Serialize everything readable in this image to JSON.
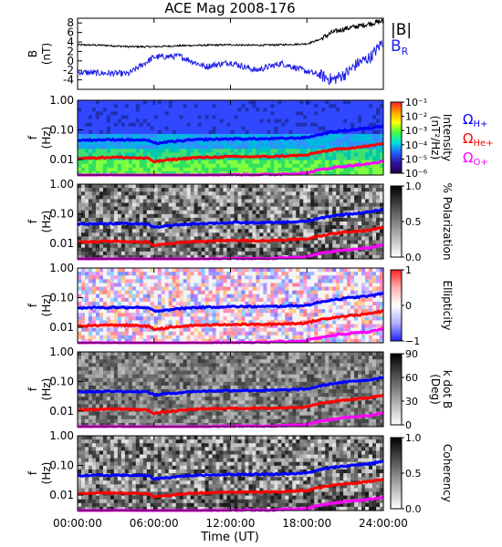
{
  "title": "ACE Mag 2008-176",
  "xlabel": "Time (UT)",
  "colors": {
    "B_total": "#000000",
    "B_R": "#1f1fe6",
    "H_plus": "#0000ff",
    "He_plus": "#ff0000",
    "O_plus": "#ff00ff"
  },
  "chart_data": [
    {
      "type": "line",
      "panel": "B",
      "ylabel": "B",
      "yunit": "(nT)",
      "ylim": [
        -6,
        9
      ],
      "yticks": [
        -4,
        -2,
        0,
        2,
        4,
        6,
        8
      ],
      "x": [
        0,
        2,
        4,
        6,
        8,
        10,
        12,
        14,
        16,
        18,
        19,
        20,
        21,
        22,
        23,
        24
      ],
      "xticks": [
        "00:00:00",
        "06:00:00",
        "12:00:00",
        "18:00:00",
        "24:00:00"
      ],
      "series": [
        {
          "name": "|B|",
          "color": "#000000",
          "values": [
            3.4,
            3.3,
            3.0,
            3.0,
            3.2,
            3.3,
            3.4,
            3.3,
            3.4,
            3.6,
            4.5,
            6.0,
            6.8,
            7.3,
            7.9,
            8.4
          ]
        },
        {
          "name": "B_R",
          "color": "#1f1fe6",
          "values": [
            -2.4,
            -2.6,
            -2.7,
            0.8,
            1.0,
            -1.2,
            -0.3,
            -2.0,
            -0.5,
            -2.2,
            -3.0,
            -4.0,
            -2.8,
            -0.5,
            0.8,
            4.2
          ]
        }
      ]
    },
    {
      "type": "heatmap",
      "panel": "intensity",
      "ylabel": "f",
      "yunit": "(Hz)",
      "ylim": [
        0.003,
        1.0
      ],
      "ytick_labels": [
        "1.00",
        "0.10",
        "0.01"
      ],
      "colorbar": {
        "label": "Intensity",
        "unit": "(nT²/Hz)",
        "ticks": [
          "10⁻¹",
          "10⁻²",
          "10⁻³",
          "10⁻⁴",
          "10⁻⁵",
          "10⁻⁶"
        ]
      }
    },
    {
      "type": "heatmap",
      "panel": "polarization",
      "ylabel": "f",
      "yunit": "(Hz)",
      "ylim": [
        0.003,
        1.0
      ],
      "ytick_labels": [
        "1.00",
        "0.10",
        "0.01"
      ],
      "colorbar": {
        "label": "% Polarization",
        "ticks": [
          "1.0",
          "0.5",
          "0.0"
        ]
      }
    },
    {
      "type": "heatmap",
      "panel": "ellipticity",
      "ylabel": "f",
      "yunit": "(Hz)",
      "ylim": [
        0.003,
        1.0
      ],
      "ytick_labels": [
        "1.00",
        "0.10",
        "0.01"
      ],
      "colorbar": {
        "label": "Ellipticity",
        "ticks": [
          "1",
          "0",
          "−1"
        ]
      }
    },
    {
      "type": "heatmap",
      "panel": "kdotb",
      "ylabel": "f",
      "yunit": "(Hz)",
      "ylim": [
        0.003,
        1.0
      ],
      "ytick_labels": [
        "1.00",
        "0.10",
        "0.01"
      ],
      "colorbar": {
        "label": "k dot B",
        "unit": "(Deg)",
        "ticks": [
          "90",
          "60",
          "30",
          "0"
        ]
      }
    },
    {
      "type": "heatmap",
      "panel": "coherency",
      "ylabel": "f",
      "yunit": "(Hz)",
      "ylim": [
        0.003,
        1.0
      ],
      "ytick_labels": [
        "1.00",
        "0.10",
        "0.01"
      ],
      "colorbar": {
        "label": "Coherency",
        "ticks": [
          "1.0",
          "0.5",
          "0.0"
        ]
      }
    }
  ],
  "gyrofrequencies": {
    "labels": [
      "ΩH+",
      "ΩHe+",
      "ΩO+"
    ],
    "x": [
      0,
      3,
      5.5,
      6,
      9,
      12,
      15,
      18,
      19,
      20,
      21,
      22,
      23,
      24
    ],
    "H_plus": [
      0.045,
      0.047,
      0.045,
      0.035,
      0.046,
      0.05,
      0.05,
      0.055,
      0.07,
      0.085,
      0.095,
      0.105,
      0.115,
      0.14
    ],
    "He_plus": [
      0.011,
      0.012,
      0.011,
      0.0085,
      0.0115,
      0.0125,
      0.0125,
      0.014,
      0.018,
      0.021,
      0.024,
      0.026,
      0.029,
      0.035
    ],
    "O_plus": [
      0.0028,
      0.003,
      0.0028,
      0.0022,
      0.0029,
      0.0031,
      0.0031,
      0.0035,
      0.0045,
      0.0053,
      0.006,
      0.0066,
      0.0072,
      0.0088
    ]
  }
}
